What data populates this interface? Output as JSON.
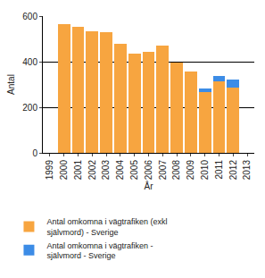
{
  "chart_data": {
    "type": "bar",
    "stacked": true,
    "grid": true,
    "legend": "bottom",
    "x_label": "År",
    "y_label": "Antal",
    "categories": [
      "1999",
      "2000",
      "2001",
      "2002",
      "2003",
      "2004",
      "2005",
      "2006",
      "2007",
      "2008",
      "2009",
      "2010",
      "2011",
      "2012",
      "2013"
    ],
    "ylim": [
      0,
      600
    ],
    "yticks": [
      0,
      200,
      400,
      600
    ],
    "series": [
      {
        "name": "Antal omkomna i vägtrafiken (exkl självmord) - Sverige",
        "color": "#f7a540",
        "values": [
          null,
          565,
          553,
          533,
          528,
          479,
          437,
          445,
          470,
          397,
          357,
          266,
          314,
          285,
          null
        ]
      },
      {
        "name": "Antal omkomna i vägtrafiken - självmord - Sverige",
        "color": "#3c8ce6",
        "values": [
          null,
          null,
          null,
          null,
          null,
          null,
          null,
          null,
          null,
          null,
          null,
          16,
          25,
          38,
          null
        ]
      }
    ]
  }
}
